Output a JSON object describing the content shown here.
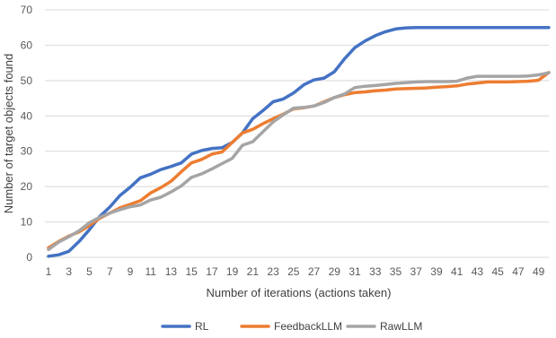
{
  "chart_data": {
    "type": "line",
    "title": "",
    "xlabel": "Number of iterations (actions taken)",
    "ylabel": "Number of target objects found",
    "ylim": [
      0,
      70
    ],
    "yticks": [
      0,
      10,
      20,
      30,
      40,
      50,
      60,
      70
    ],
    "x": [
      1,
      2,
      3,
      4,
      5,
      6,
      7,
      8,
      9,
      10,
      11,
      12,
      13,
      14,
      15,
      16,
      17,
      18,
      19,
      20,
      21,
      22,
      23,
      24,
      25,
      26,
      27,
      28,
      29,
      30,
      31,
      32,
      33,
      34,
      35,
      36,
      37,
      38,
      39,
      40,
      41,
      42,
      43,
      44,
      45,
      46,
      47,
      48,
      49,
      50
    ],
    "xtick_labels": [
      "1",
      "3",
      "5",
      "7",
      "9",
      "11",
      "13",
      "15",
      "17",
      "19",
      "21",
      "23",
      "25",
      "27",
      "29",
      "31",
      "33",
      "35",
      "37",
      "39",
      "41",
      "43",
      "45",
      "47",
      "49"
    ],
    "grid": "horizontal",
    "legend_position": "bottom",
    "series": [
      {
        "name": "RL",
        "color": "#4472C4",
        "values": [
          0.3,
          0.7,
          1.7,
          4.5,
          7.8,
          11.5,
          14.2,
          17.5,
          19.8,
          22.5,
          23.5,
          24.8,
          25.7,
          26.7,
          29.2,
          30.2,
          30.8,
          31,
          32.5,
          35.2,
          39.2,
          41.5,
          44,
          44.8,
          46.5,
          48.8,
          50.2,
          50.7,
          52.5,
          56.2,
          59.3,
          61.2,
          62.7,
          63.8,
          64.6,
          64.9,
          65,
          65,
          65,
          65,
          65,
          65,
          65,
          65,
          65,
          65,
          65,
          65,
          65,
          65
        ]
      },
      {
        "name": "FeedbackLLM",
        "color": "#ED7D31",
        "values": [
          2.7,
          4.5,
          6,
          7.2,
          9,
          11,
          12.5,
          14,
          15,
          16,
          18.2,
          19.7,
          21.5,
          24.2,
          26.7,
          27.7,
          29.2,
          29.8,
          32.5,
          35.2,
          36.2,
          37.8,
          39.2,
          40.5,
          42,
          42.3,
          42.8,
          44,
          45.2,
          46,
          46.6,
          46.8,
          47.1,
          47.3,
          47.6,
          47.7,
          47.8,
          47.9,
          48.1,
          48.3,
          48.5,
          49,
          49.3,
          49.6,
          49.6,
          49.6,
          49.7,
          49.8,
          50.1,
          52.3
        ]
      },
      {
        "name": "RawLLM",
        "color": "#A5A5A5",
        "values": [
          2.2,
          4.3,
          5.8,
          7.5,
          9.8,
          11.3,
          12.5,
          13.5,
          14.3,
          14.8,
          16.2,
          17,
          18.5,
          20.2,
          22.6,
          23.6,
          25,
          26.5,
          28,
          31.7,
          32.7,
          35.5,
          38.3,
          40.3,
          42.2,
          42.4,
          42.8,
          43.8,
          45.2,
          46.2,
          48,
          48.4,
          48.6,
          48.9,
          49.2,
          49.4,
          49.6,
          49.7,
          49.7,
          49.7,
          49.8,
          50.7,
          51.2,
          51.2,
          51.2,
          51.2,
          51.2,
          51.3,
          51.6,
          52.2
        ]
      }
    ]
  }
}
